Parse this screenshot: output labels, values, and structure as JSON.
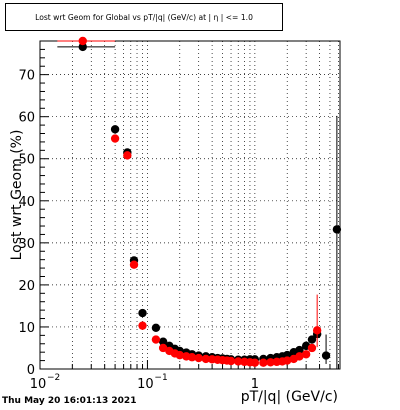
{
  "chart_data": {
    "type": "scatter",
    "title": "Lost wrt Geom for Global vs pT/|q| (GeV/c) at | η | <= 1.0",
    "xlabel": "pT/|q| (GeV/c)",
    "ylabel": "Lost wrt Geom (%)",
    "x_scale": "log",
    "xlim": [
      0.01,
      6.2
    ],
    "ylim": [
      0,
      78
    ],
    "grid": true,
    "x_major_ticks": [
      0.01,
      0.1,
      1
    ],
    "x_tick_labels": [
      {
        "major": "10",
        "exp": "−2"
      },
      {
        "major": "10",
        "exp": "−1"
      },
      {
        "major": "1",
        "exp": ""
      }
    ],
    "y_ticks": [
      0,
      10,
      20,
      30,
      40,
      50,
      60,
      70
    ],
    "series": [
      {
        "color": "#000000",
        "points": [
          {
            "x": 0.025,
            "y": 76.6,
            "xerr": [
              0.0105,
              0.025
            ]
          },
          {
            "x": 0.05,
            "y": 57.0
          },
          {
            "x": 0.065,
            "y": 51.5
          },
          {
            "x": 0.075,
            "y": 25.8
          },
          {
            "x": 0.09,
            "y": 13.3
          },
          {
            "x": 0.12,
            "y": 9.8
          },
          {
            "x": 0.14,
            "y": 6.5
          },
          {
            "x": 0.16,
            "y": 5.5
          },
          {
            "x": 0.18,
            "y": 4.8
          },
          {
            "x": 0.2,
            "y": 4.3
          },
          {
            "x": 0.23,
            "y": 3.9
          },
          {
            "x": 0.26,
            "y": 3.5
          },
          {
            "x": 0.3,
            "y": 3.2
          },
          {
            "x": 0.35,
            "y": 3.0
          },
          {
            "x": 0.4,
            "y": 2.8
          },
          {
            "x": 0.45,
            "y": 2.6
          },
          {
            "x": 0.5,
            "y": 2.5
          },
          {
            "x": 0.55,
            "y": 2.4
          },
          {
            "x": 0.6,
            "y": 2.3
          },
          {
            "x": 0.7,
            "y": 2.2
          },
          {
            "x": 0.8,
            "y": 2.2
          },
          {
            "x": 0.9,
            "y": 2.3
          },
          {
            "x": 1.0,
            "y": 2.3
          },
          {
            "x": 1.2,
            "y": 2.4
          },
          {
            "x": 1.4,
            "y": 2.6
          },
          {
            "x": 1.6,
            "y": 2.8
          },
          {
            "x": 1.8,
            "y": 3.0
          },
          {
            "x": 2.0,
            "y": 3.3
          },
          {
            "x": 2.3,
            "y": 4.0
          },
          {
            "x": 2.6,
            "y": 4.5
          },
          {
            "x": 3.0,
            "y": 5.5
          },
          {
            "x": 3.4,
            "y": 7.0
          },
          {
            "x": 3.8,
            "y": 8.3
          },
          {
            "x": 4.6,
            "y": 3.2,
            "yerr": [
              2.0,
              5.0
            ]
          },
          {
            "x": 5.8,
            "y": 33.2,
            "yerr": [
              33.2,
              27.0
            ]
          }
        ]
      },
      {
        "color": "#ff0000",
        "points": [
          {
            "x": 0.025,
            "y": 78.0,
            "xerr": [
              0.0105,
              0.025
            ]
          },
          {
            "x": 0.05,
            "y": 54.8
          },
          {
            "x": 0.065,
            "y": 50.8
          },
          {
            "x": 0.075,
            "y": 24.8
          },
          {
            "x": 0.09,
            "y": 10.3
          },
          {
            "x": 0.12,
            "y": 7.0
          },
          {
            "x": 0.14,
            "y": 5.0
          },
          {
            "x": 0.16,
            "y": 4.3
          },
          {
            "x": 0.18,
            "y": 3.7
          },
          {
            "x": 0.2,
            "y": 3.3
          },
          {
            "x": 0.23,
            "y": 3.0
          },
          {
            "x": 0.26,
            "y": 2.8
          },
          {
            "x": 0.3,
            "y": 2.6
          },
          {
            "x": 0.35,
            "y": 2.4
          },
          {
            "x": 0.4,
            "y": 2.3
          },
          {
            "x": 0.45,
            "y": 2.2
          },
          {
            "x": 0.5,
            "y": 2.1
          },
          {
            "x": 0.55,
            "y": 2.0
          },
          {
            "x": 0.6,
            "y": 1.9
          },
          {
            "x": 0.7,
            "y": 1.8
          },
          {
            "x": 0.8,
            "y": 1.7
          },
          {
            "x": 0.9,
            "y": 1.6
          },
          {
            "x": 1.0,
            "y": 1.5
          },
          {
            "x": 1.2,
            "y": 1.5
          },
          {
            "x": 1.4,
            "y": 1.6
          },
          {
            "x": 1.6,
            "y": 1.7
          },
          {
            "x": 1.8,
            "y": 1.8
          },
          {
            "x": 2.0,
            "y": 2.0
          },
          {
            "x": 2.3,
            "y": 2.4
          },
          {
            "x": 2.6,
            "y": 3.0
          },
          {
            "x": 3.0,
            "y": 3.5
          },
          {
            "x": 3.4,
            "y": 5.0
          },
          {
            "x": 3.8,
            "y": 9.2,
            "yerr": [
              4.0,
              8.5
            ]
          }
        ]
      }
    ]
  },
  "timestamp": "Thu May 20 16:01:13 2021"
}
